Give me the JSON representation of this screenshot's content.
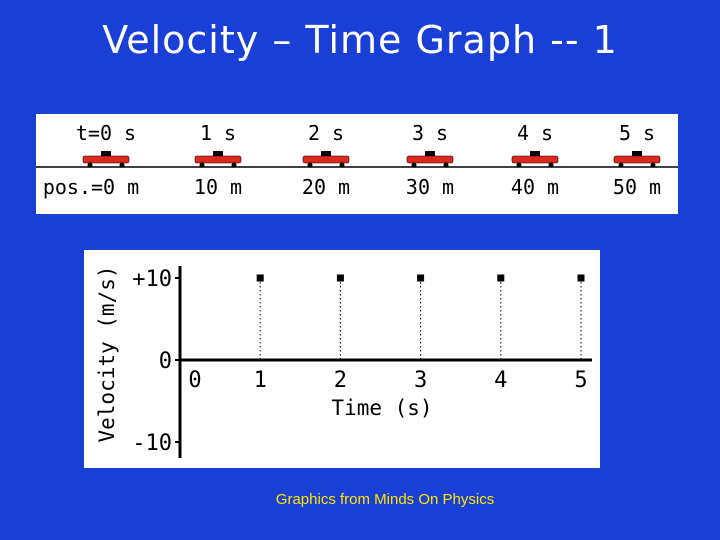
{
  "title": "Velocity – Time Graph -- 1",
  "credit": "Graphics from Minds On Physics",
  "strip": {
    "times": [
      "t=0 s",
      "1 s",
      "2 s",
      "3 s",
      "4 s",
      "5 s"
    ],
    "positions": [
      "pos.=0 m",
      "10 m",
      "20 m",
      "30 m",
      "40 m",
      "50 m"
    ],
    "car_color": "#e0271d"
  },
  "chart_data": {
    "type": "scatter",
    "xlabel": "Time (s)",
    "ylabel": "Velocity (m/s)",
    "x_ticks": [
      "0",
      "1",
      "2",
      "3",
      "4",
      "5"
    ],
    "y_ticks": [
      "+10",
      "0",
      "-10"
    ],
    "xlim": [
      0,
      5
    ],
    "ylim": [
      -10,
      10
    ],
    "series": [
      {
        "x": [
          1,
          2,
          3,
          4,
          5
        ],
        "y": [
          10,
          10,
          10,
          10,
          10
        ]
      }
    ],
    "guides": "dotted vertical lines from each point down to the time axis"
  }
}
